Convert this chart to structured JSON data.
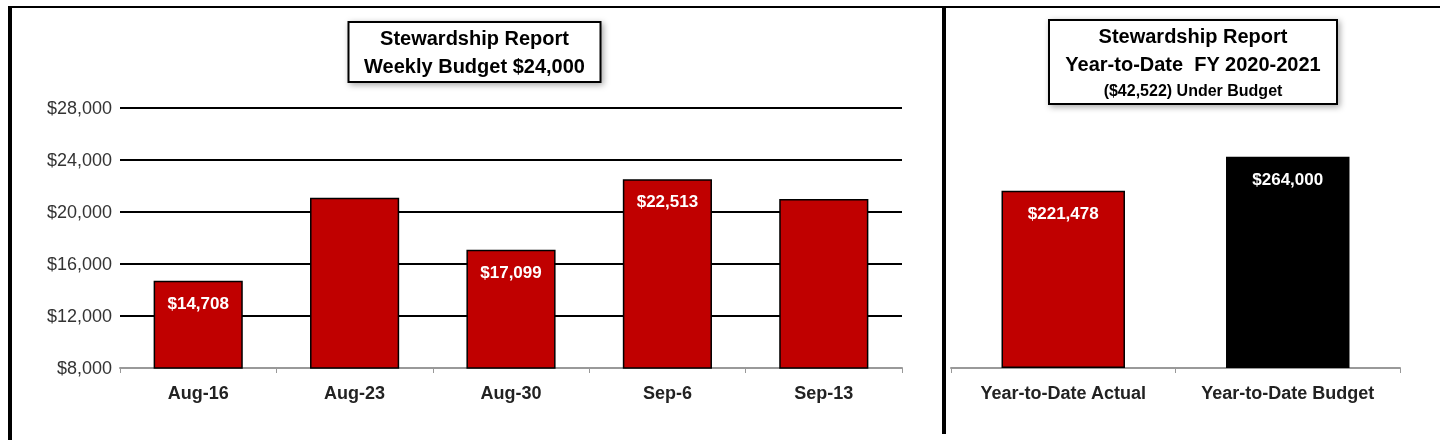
{
  "chart_data": [
    {
      "type": "bar",
      "title": "Stewardship Report",
      "subtitle": "Weekly Budget $24,000",
      "categories": [
        "Aug-16",
        "Aug-23",
        "Aug-30",
        "Sep-6",
        "Sep-13"
      ],
      "series": [
        {
          "color": "#c00000",
          "values": [
            14708,
            21100,
            17099,
            22513,
            21000
          ],
          "value_labels": [
            "$14,708",
            null,
            "$17,099",
            "$22,513",
            null
          ]
        }
      ],
      "ylim": [
        8000,
        28000
      ],
      "yticks": [
        {
          "value": 8000,
          "label": "$8,000"
        },
        {
          "value": 12000,
          "label": "$12,000"
        },
        {
          "value": 16000,
          "label": "$16,000"
        },
        {
          "value": 20000,
          "label": "$20,000"
        },
        {
          "value": 24000,
          "label": "$24,000"
        },
        {
          "value": 28000,
          "label": "$28,000"
        }
      ],
      "grid": "y"
    },
    {
      "type": "bar",
      "title": "Stewardship Report",
      "subtitle": "Year-to-Date  FY 2020-2021",
      "annotations": [
        "($42,522) Under Budget"
      ],
      "categories": [
        "Year-to-Date Actual",
        "Year-to-Date Budget"
      ],
      "series": [
        {
          "colors": [
            "#c00000",
            "#000000"
          ],
          "values": [
            221478,
            264000
          ],
          "value_labels": [
            "$221,478",
            "$264,000"
          ]
        }
      ],
      "tick_labels": "x",
      "grid": false
    }
  ]
}
